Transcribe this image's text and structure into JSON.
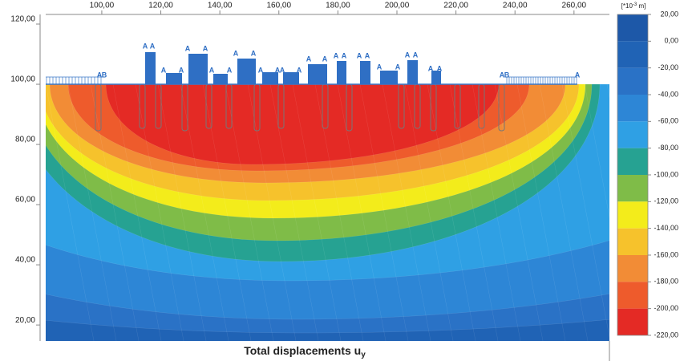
{
  "chart_data": {
    "type": "contour",
    "title": "Total displacements u",
    "title_subscript": "y",
    "xlim": [
      81,
      272
    ],
    "ylim": [
      14.7,
      123.2
    ],
    "xticks": [
      {
        "value": 100,
        "label": "100,00"
      },
      {
        "value": 120,
        "label": "120,00"
      },
      {
        "value": 140,
        "label": "140,00"
      },
      {
        "value": 160,
        "label": "160,00"
      },
      {
        "value": 180,
        "label": "180,00"
      },
      {
        "value": 200,
        "label": "200,00"
      },
      {
        "value": 220,
        "label": "220,00"
      },
      {
        "value": 240,
        "label": "240,00"
      },
      {
        "value": 260,
        "label": "260,00"
      }
    ],
    "yticks": [
      {
        "value": 20,
        "label": "20,00"
      },
      {
        "value": 40,
        "label": "40,00"
      },
      {
        "value": 60,
        "label": "60,00"
      },
      {
        "value": 80,
        "label": "80,00"
      },
      {
        "value": 100,
        "label": "100,00"
      },
      {
        "value": 120,
        "label": "120,00"
      }
    ],
    "colorbar": {
      "unit_label": [
        "[*10",
        "-3",
        " m]"
      ],
      "lim": [
        -220,
        20
      ],
      "ticks": [
        {
          "value": 20,
          "label": "20,00"
        },
        {
          "value": 0,
          "label": "0,00"
        },
        {
          "value": -20,
          "label": "-20,00"
        },
        {
          "value": -40,
          "label": "-40,00"
        },
        {
          "value": -60,
          "label": "-60,00"
        },
        {
          "value": -80,
          "label": "-80,00"
        },
        {
          "value": -100,
          "label": "-100,00"
        },
        {
          "value": -120,
          "label": "-120,00"
        },
        {
          "value": -140,
          "label": "-140,00"
        },
        {
          "value": -160,
          "label": "-160,00"
        },
        {
          "value": -180,
          "label": "-180,00"
        },
        {
          "value": -200,
          "label": "-200,00"
        },
        {
          "value": -220,
          "label": "-220,00"
        }
      ],
      "band_colors": [
        "#1d58a8",
        "#2063b5",
        "#2a72c6",
        "#2d86d6",
        "#2fa0e4",
        "#26a292",
        "#7fbc48",
        "#f3ec1b",
        "#f6c22c",
        "#f28c36",
        "#ee5b2c",
        "#e42a25"
      ]
    },
    "structure_labels": [
      "A",
      "B",
      "A",
      "A",
      "A",
      "A",
      "A",
      "A",
      "A",
      "A",
      "A",
      "A",
      "A",
      "A",
      "A",
      "A",
      "A",
      "A",
      "A",
      "A",
      "A",
      "A",
      "A",
      "A",
      "A",
      "A",
      "A",
      "A",
      "A",
      "B",
      "A"
    ]
  }
}
